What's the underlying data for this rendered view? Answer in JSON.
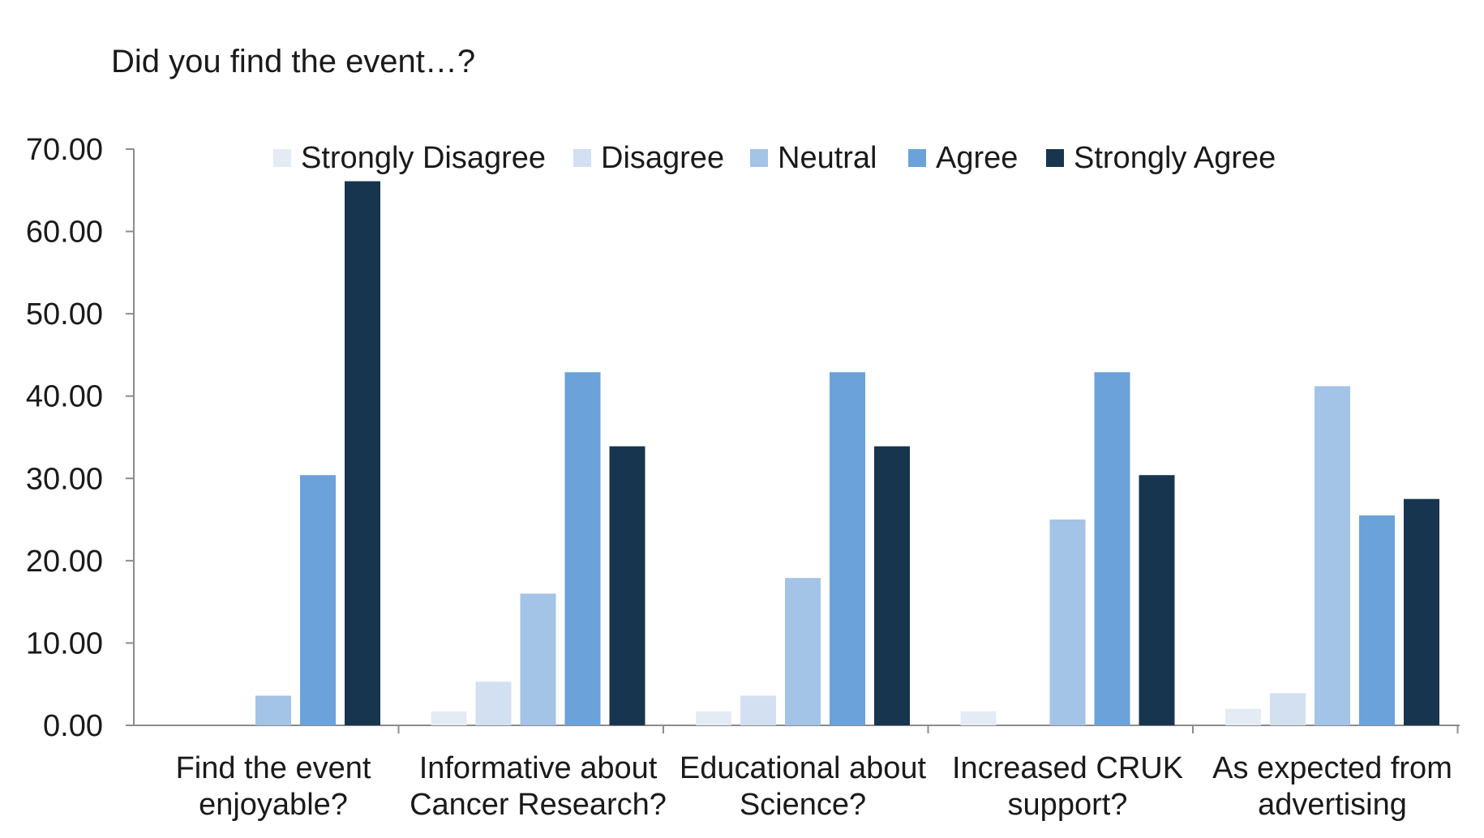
{
  "chart_data": {
    "type": "bar",
    "title": "Did you find the event…?",
    "categories": [
      [
        "Find the event",
        "enjoyable?"
      ],
      [
        "Informative about",
        "Cancer Research?"
      ],
      [
        "Educational about",
        "Science?"
      ],
      [
        "Increased CRUK",
        "support?"
      ],
      [
        "As expected from",
        "advertising"
      ]
    ],
    "series": [
      {
        "name": "Strongly Disagree",
        "color": "#e4ebf5",
        "values": [
          0,
          1.7,
          1.7,
          1.7,
          2.0
        ]
      },
      {
        "name": "Disagree",
        "color": "#d2e0f2",
        "values": [
          0,
          5.3,
          3.6,
          0,
          3.9
        ]
      },
      {
        "name": "Neutral",
        "color": "#a3c3e7",
        "values": [
          3.6,
          16.0,
          17.9,
          25.0,
          41.2
        ]
      },
      {
        "name": "Agree",
        "color": "#6aa2d9",
        "values": [
          30.4,
          42.9,
          42.9,
          42.9,
          25.5
        ]
      },
      {
        "name": "Strongly Agree",
        "color": "#18354f",
        "values": [
          66.1,
          33.9,
          33.9,
          30.4,
          27.5
        ]
      }
    ],
    "ylim": [
      0,
      70
    ],
    "yticks": [
      "0.00",
      "10.00",
      "20.00",
      "30.00",
      "40.00",
      "50.00",
      "60.00",
      "70.00"
    ],
    "ytick_values": [
      0,
      10,
      20,
      30,
      40,
      50,
      60,
      70
    ],
    "legend_position": "top",
    "grid": false
  }
}
